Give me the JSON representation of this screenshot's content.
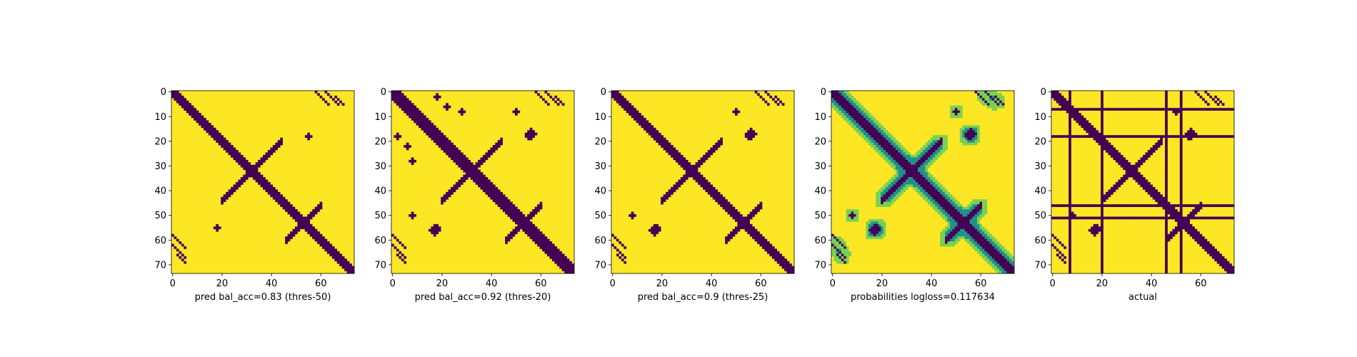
{
  "colors": {
    "dark": "#440154",
    "light": "#fde725",
    "mid": "#21918c",
    "midlight": "#7ad151",
    "teal": "#2a788e"
  },
  "chart_data": [
    {
      "type": "heatmap",
      "title": "",
      "xlabel": "pred bal_acc=0.83 (thres-50)",
      "ylabel": "",
      "size": 74,
      "xticks": [
        0,
        20,
        40,
        60
      ],
      "yticks": [
        0,
        10,
        20,
        30,
        40,
        50,
        60,
        70
      ],
      "variant": "pred50",
      "description_values": "binary contact map, diagonal band plus off-diagonal contacts"
    },
    {
      "type": "heatmap",
      "title": "",
      "xlabel": "pred bal_acc=0.92 (thres-20)",
      "ylabel": "",
      "size": 74,
      "xticks": [
        0,
        20,
        40,
        60
      ],
      "yticks": [
        0,
        10,
        20,
        30,
        40,
        50,
        60,
        70
      ],
      "variant": "pred20"
    },
    {
      "type": "heatmap",
      "title": "",
      "xlabel": "pred bal_acc=0.9 (thres-25)",
      "ylabel": "",
      "size": 74,
      "xticks": [
        0,
        20,
        40,
        60
      ],
      "yticks": [
        0,
        10,
        20,
        30,
        40,
        50,
        60,
        70
      ],
      "variant": "pred25"
    },
    {
      "type": "heatmap",
      "title": "",
      "xlabel": "probabilities logloss=0.117634",
      "ylabel": "",
      "size": 74,
      "xticks": [
        0,
        20,
        40,
        60
      ],
      "yticks": [
        0,
        10,
        20,
        30,
        40,
        50,
        60,
        70
      ],
      "variant": "prob"
    },
    {
      "type": "heatmap",
      "title": "",
      "xlabel": "actual",
      "ylabel": "",
      "size": 74,
      "xticks": [
        0,
        20,
        40,
        60
      ],
      "yticks": [
        0,
        10,
        20,
        30,
        40,
        50,
        60,
        70
      ],
      "variant": "actual",
      "line_rows": [
        7,
        18,
        46,
        51
      ],
      "line_cols": [
        7,
        20,
        46,
        52
      ]
    }
  ]
}
